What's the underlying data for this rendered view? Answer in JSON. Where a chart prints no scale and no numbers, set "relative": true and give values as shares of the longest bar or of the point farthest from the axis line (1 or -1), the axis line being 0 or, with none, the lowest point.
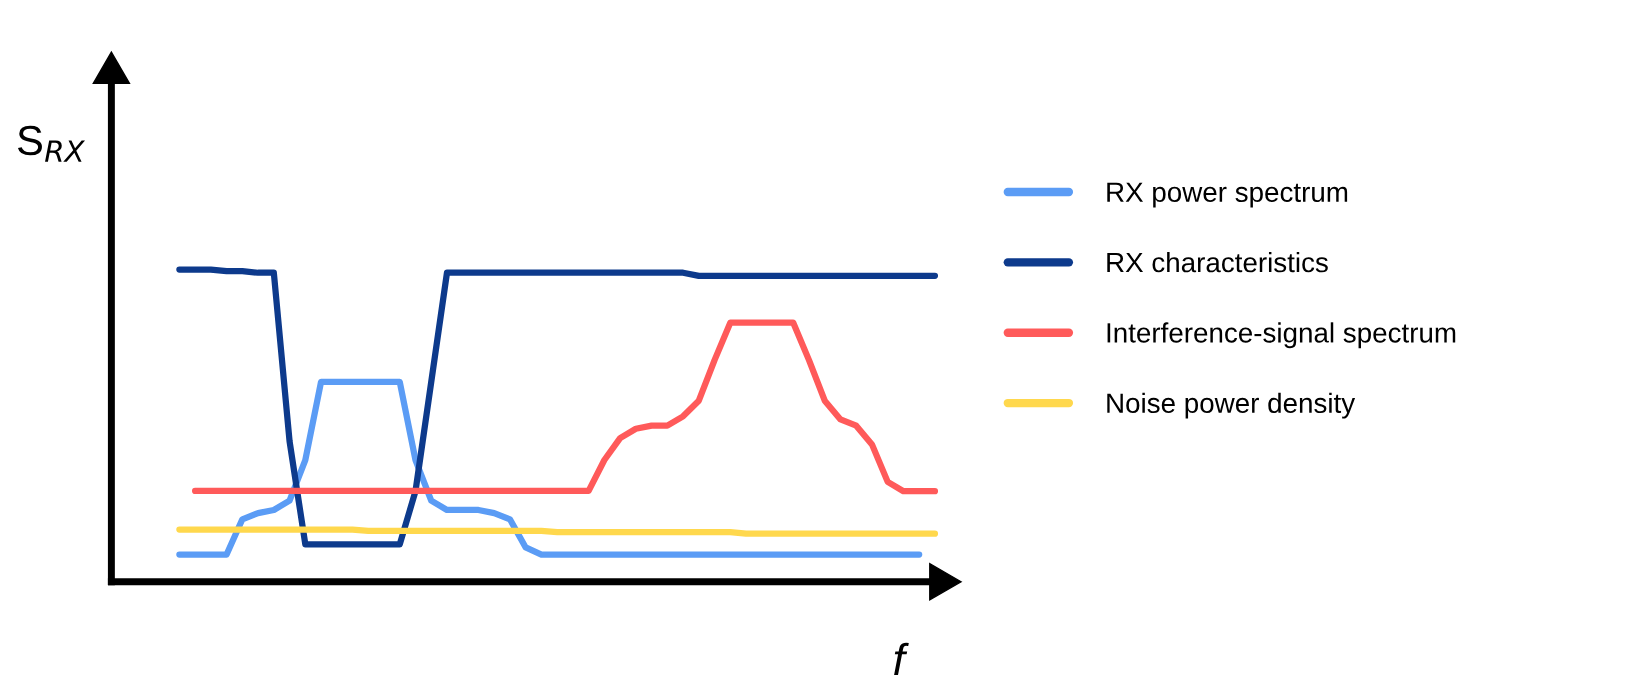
{
  "chart_data": {
    "type": "line",
    "relative": true,
    "xlabel": "f",
    "ylabel": "S$_{RX}$",
    "legend": "right",
    "grid": false,
    "marker": "none",
    "line_style": "solid",
    "categories": [
      null,
      null,
      null,
      null,
      null,
      null,
      null,
      null,
      null,
      null,
      null,
      null,
      null,
      null,
      null,
      null,
      null,
      null,
      null,
      null,
      null,
      null,
      null,
      null,
      null,
      null,
      null,
      null,
      null,
      null,
      null,
      null,
      null,
      null,
      null,
      null,
      null,
      null,
      null,
      null,
      null,
      null,
      null,
      null,
      null,
      null,
      null,
      null,
      null
    ],
    "series": [
      {
        "name": "RX power spectrum",
        "color": "#5b9cf5",
        "values": [
          0.087,
          0.087,
          0.087,
          0.087,
          0.2,
          0.22,
          0.23,
          0.26,
          0.39,
          0.64,
          0.64,
          0.64,
          0.64,
          0.64,
          0.64,
          0.39,
          0.26,
          0.23,
          0.23,
          0.23,
          0.22,
          0.2,
          0.11,
          0.087,
          0.087,
          0.087,
          0.087,
          0.087,
          0.087,
          0.087,
          0.087,
          0.087,
          0.087,
          0.087,
          0.087,
          0.087,
          0.087,
          0.087,
          0.087,
          0.087,
          0.087,
          0.087,
          0.087,
          0.087,
          0.087,
          0.087,
          0.087,
          0.087,
          null
        ]
      },
      {
        "name": "RX characteristics",
        "color": "#0d3a8c",
        "values": [
          1.0,
          1.0,
          1.0,
          0.995,
          0.995,
          0.99,
          0.99,
          0.45,
          0.12,
          0.12,
          0.12,
          0.12,
          0.12,
          0.12,
          0.12,
          0.29,
          0.64,
          0.99,
          0.99,
          0.99,
          0.99,
          0.99,
          0.99,
          0.99,
          0.99,
          0.99,
          0.99,
          0.99,
          0.99,
          0.99,
          0.99,
          0.99,
          0.99,
          0.98,
          0.98,
          0.98,
          0.98,
          0.98,
          0.98,
          0.98,
          0.98,
          0.98,
          0.98,
          0.98,
          0.98,
          0.98,
          0.98,
          0.98,
          0.98
        ]
      },
      {
        "name": "Interference-signal spectrum",
        "color": "#ff5a5a",
        "values": [
          null,
          0.291,
          0.291,
          0.291,
          0.291,
          0.291,
          0.291,
          0.291,
          0.291,
          0.291,
          0.291,
          0.291,
          0.291,
          0.291,
          0.291,
          0.291,
          0.291,
          0.291,
          0.291,
          0.291,
          0.291,
          0.291,
          0.291,
          0.291,
          0.291,
          0.291,
          0.291,
          0.39,
          0.46,
          0.49,
          0.5,
          0.5,
          0.53,
          0.58,
          0.71,
          0.83,
          0.83,
          0.83,
          0.83,
          0.83,
          0.71,
          0.58,
          0.52,
          0.5,
          0.44,
          0.32,
          0.29,
          0.29,
          0.29
        ]
      },
      {
        "name": "Noise power density",
        "color": "#ffd84d",
        "values": [
          0.167,
          0.167,
          0.167,
          0.167,
          0.167,
          0.167,
          0.167,
          0.167,
          0.167,
          0.167,
          0.167,
          0.167,
          0.163,
          0.163,
          0.163,
          0.163,
          0.163,
          0.163,
          0.163,
          0.163,
          0.163,
          0.163,
          0.163,
          0.163,
          0.159,
          0.159,
          0.159,
          0.159,
          0.159,
          0.159,
          0.159,
          0.159,
          0.159,
          0.159,
          0.159,
          0.159,
          0.154,
          0.154,
          0.154,
          0.154,
          0.154,
          0.154,
          0.154,
          0.154,
          0.154,
          0.154,
          0.154,
          0.154,
          0.154
        ]
      }
    ]
  }
}
